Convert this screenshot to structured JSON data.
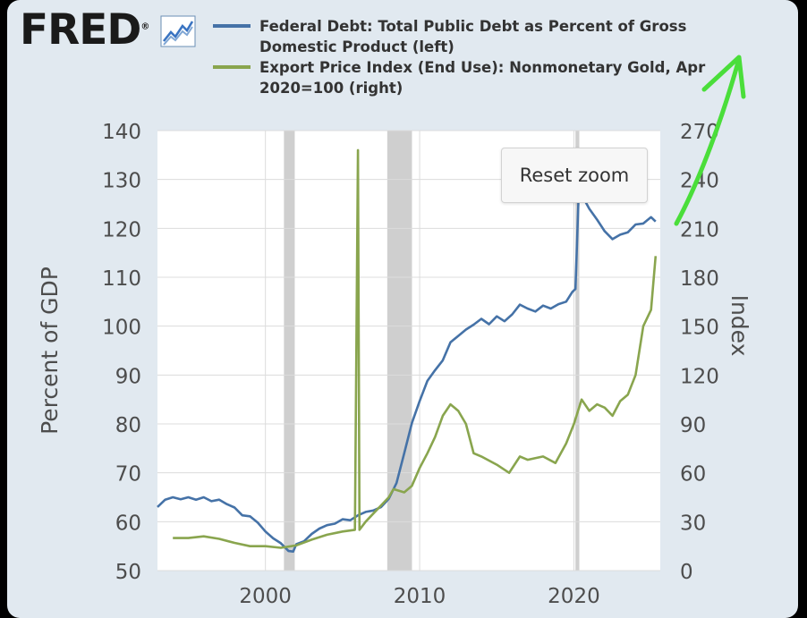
{
  "brand": {
    "logo_text": "FRED",
    "logo_mark": "®"
  },
  "icons": {
    "chart_icon": "chart-line-icon",
    "arrow_annotation": "arrow-annotation-icon"
  },
  "colors": {
    "background": "#e1e9f0",
    "plot_bg": "#ffffff",
    "debt_series": "#4572a7",
    "gold_series": "#89a54e",
    "annotation": "#4ade3a",
    "recession": "#cfcfcf"
  },
  "controls": {
    "reset_zoom_label": "Reset zoom"
  },
  "chart_data": {
    "type": "line",
    "legend_position": "top",
    "x": {
      "label": "",
      "min": 1993.0,
      "max": 2025.6,
      "ticks": [
        2000,
        2010,
        2020
      ],
      "tick_labels": [
        "2000",
        "2010",
        "2020"
      ]
    },
    "y_left": {
      "label": "Percent of GDP",
      "min": 50,
      "max": 140,
      "ticks": [
        50,
        60,
        70,
        80,
        90,
        100,
        110,
        120,
        130,
        140
      ],
      "tick_labels": [
        "50",
        "60",
        "70",
        "80",
        "90",
        "100",
        "110",
        "120",
        "130",
        "140"
      ]
    },
    "y_right": {
      "label": "Index",
      "min": 0,
      "max": 270,
      "ticks": [
        0,
        30,
        60,
        90,
        120,
        150,
        180,
        210,
        240,
        270
      ],
      "tick_labels": [
        "0",
        "30",
        "60",
        "90",
        "120",
        "150",
        "180",
        "210",
        "240",
        "270"
      ]
    },
    "recessions": [
      [
        2001.2,
        2001.9
      ],
      [
        2007.9,
        2009.5
      ],
      [
        2020.1,
        2020.35
      ]
    ],
    "series": [
      {
        "name": "Federal Debt: Total Public Debt as Percent of Gross Domestic Product (left)",
        "axis": "left",
        "points": [
          [
            1993.0,
            63.0
          ],
          [
            1993.5,
            64.5
          ],
          [
            1994.0,
            65.0
          ],
          [
            1994.5,
            64.6
          ],
          [
            1995.0,
            65.0
          ],
          [
            1995.5,
            64.5
          ],
          [
            1996.0,
            65.0
          ],
          [
            1996.5,
            64.2
          ],
          [
            1997.0,
            64.5
          ],
          [
            1997.5,
            63.6
          ],
          [
            1998.0,
            62.9
          ],
          [
            1998.5,
            61.3
          ],
          [
            1999.0,
            61.1
          ],
          [
            1999.5,
            59.8
          ],
          [
            2000.0,
            58.0
          ],
          [
            2000.5,
            56.6
          ],
          [
            2001.0,
            55.6
          ],
          [
            2001.5,
            54.0
          ],
          [
            2001.8,
            53.9
          ],
          [
            2002.0,
            55.4
          ],
          [
            2002.5,
            56.0
          ],
          [
            2003.0,
            57.5
          ],
          [
            2003.5,
            58.6
          ],
          [
            2004.0,
            59.3
          ],
          [
            2004.5,
            59.6
          ],
          [
            2005.0,
            60.5
          ],
          [
            2005.5,
            60.3
          ],
          [
            2006.0,
            61.3
          ],
          [
            2006.5,
            62.0
          ],
          [
            2007.0,
            62.3
          ],
          [
            2007.5,
            63.0
          ],
          [
            2008.0,
            64.7
          ],
          [
            2008.5,
            67.9
          ],
          [
            2009.0,
            74.0
          ],
          [
            2009.5,
            80.2
          ],
          [
            2010.0,
            84.7
          ],
          [
            2010.5,
            88.8
          ],
          [
            2011.0,
            91.0
          ],
          [
            2011.5,
            93.0
          ],
          [
            2012.0,
            96.7
          ],
          [
            2012.5,
            98.0
          ],
          [
            2013.0,
            99.3
          ],
          [
            2013.5,
            100.3
          ],
          [
            2014.0,
            101.5
          ],
          [
            2014.5,
            100.4
          ],
          [
            2015.0,
            102.0
          ],
          [
            2015.5,
            101.0
          ],
          [
            2016.0,
            102.4
          ],
          [
            2016.5,
            104.4
          ],
          [
            2017.0,
            103.6
          ],
          [
            2017.5,
            103.0
          ],
          [
            2018.0,
            104.2
          ],
          [
            2018.5,
            103.6
          ],
          [
            2019.0,
            104.5
          ],
          [
            2019.5,
            105.0
          ],
          [
            2019.9,
            107.0
          ],
          [
            2020.1,
            107.6
          ],
          [
            2020.3,
            126.0
          ],
          [
            2020.6,
            126.3
          ],
          [
            2021.0,
            124.0
          ],
          [
            2021.5,
            121.8
          ],
          [
            2022.0,
            119.4
          ],
          [
            2022.5,
            117.8
          ],
          [
            2023.0,
            118.7
          ],
          [
            2023.5,
            119.2
          ],
          [
            2024.0,
            120.8
          ],
          [
            2024.5,
            121.0
          ],
          [
            2025.0,
            122.3
          ],
          [
            2025.3,
            121.4
          ]
        ]
      },
      {
        "name": "Export Price Index (End Use): Nonmonetary Gold, Apr 2020=100 (right)",
        "axis": "right",
        "points": [
          [
            1994.0,
            20.0
          ],
          [
            1995.0,
            20.0
          ],
          [
            1996.0,
            21.0
          ],
          [
            1997.0,
            19.5
          ],
          [
            1998.0,
            17.0
          ],
          [
            1999.0,
            15.0
          ],
          [
            2000.0,
            15.0
          ],
          [
            2001.0,
            14.0
          ],
          [
            2002.0,
            15.5
          ],
          [
            2003.0,
            19.0
          ],
          [
            2004.0,
            22.0
          ],
          [
            2005.0,
            24.0
          ],
          [
            2005.8,
            25.0
          ],
          [
            2006.0,
            258.0
          ],
          [
            2006.1,
            25.0
          ],
          [
            2006.5,
            30.0
          ],
          [
            2007.0,
            35.0
          ],
          [
            2008.0,
            45.0
          ],
          [
            2008.3,
            50.0
          ],
          [
            2009.0,
            48.0
          ],
          [
            2009.5,
            52.0
          ],
          [
            2010.0,
            63.0
          ],
          [
            2010.5,
            72.0
          ],
          [
            2011.0,
            82.0
          ],
          [
            2011.5,
            95.0
          ],
          [
            2012.0,
            102.0
          ],
          [
            2012.5,
            98.0
          ],
          [
            2013.0,
            90.0
          ],
          [
            2013.5,
            72.0
          ],
          [
            2014.0,
            70.0
          ],
          [
            2015.0,
            65.0
          ],
          [
            2015.8,
            60.0
          ],
          [
            2016.5,
            70.0
          ],
          [
            2017.0,
            68.0
          ],
          [
            2018.0,
            70.0
          ],
          [
            2018.8,
            66.0
          ],
          [
            2019.5,
            78.0
          ],
          [
            2020.0,
            90.0
          ],
          [
            2020.5,
            105.0
          ],
          [
            2021.0,
            98.0
          ],
          [
            2021.5,
            102.0
          ],
          [
            2022.0,
            100.0
          ],
          [
            2022.5,
            95.0
          ],
          [
            2023.0,
            104.0
          ],
          [
            2023.5,
            108.0
          ],
          [
            2024.0,
            120.0
          ],
          [
            2024.5,
            150.0
          ],
          [
            2025.0,
            160.0
          ],
          [
            2025.3,
            193.0
          ]
        ]
      }
    ]
  }
}
